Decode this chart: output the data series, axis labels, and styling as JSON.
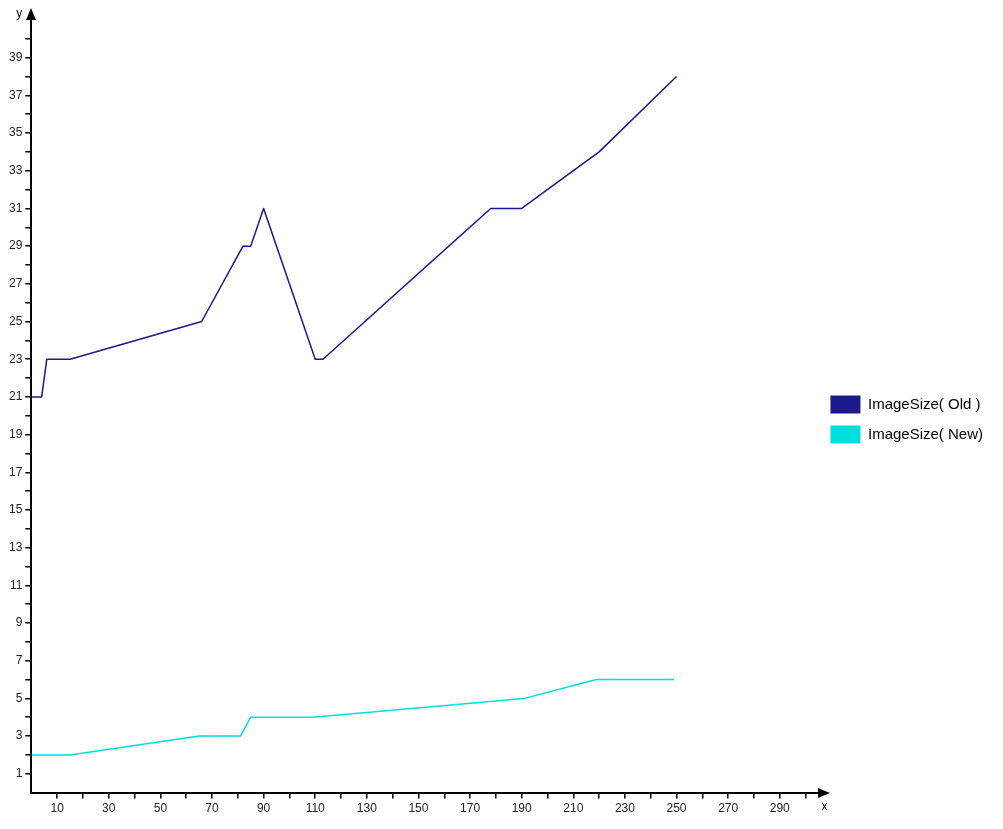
{
  "chart_data": {
    "type": "line",
    "xlabel": "x",
    "ylabel": "y",
    "xlim": [
      0,
      305
    ],
    "ylim": [
      0,
      41
    ],
    "xticks": [
      {
        "value": 10,
        "label": "10"
      },
      {
        "value": 20,
        "label": null
      },
      {
        "value": 30,
        "label": "30"
      },
      {
        "value": 40,
        "label": null
      },
      {
        "value": 50,
        "label": "50"
      },
      {
        "value": 60,
        "label": null
      },
      {
        "value": 70,
        "label": "70"
      },
      {
        "value": 80,
        "label": null
      },
      {
        "value": 90,
        "label": "90"
      },
      {
        "value": 100,
        "label": null
      },
      {
        "value": 110,
        "label": "110"
      },
      {
        "value": 120,
        "label": null
      },
      {
        "value": 130,
        "label": "130"
      },
      {
        "value": 140,
        "label": null
      },
      {
        "value": 150,
        "label": "150"
      },
      {
        "value": 160,
        "label": null
      },
      {
        "value": 170,
        "label": "170"
      },
      {
        "value": 180,
        "label": null
      },
      {
        "value": 190,
        "label": "190"
      },
      {
        "value": 200,
        "label": null
      },
      {
        "value": 210,
        "label": "210"
      },
      {
        "value": 220,
        "label": null
      },
      {
        "value": 230,
        "label": "230"
      },
      {
        "value": 240,
        "label": null
      },
      {
        "value": 250,
        "label": "250"
      },
      {
        "value": 260,
        "label": null
      },
      {
        "value": 270,
        "label": "270"
      },
      {
        "value": 280,
        "label": null
      },
      {
        "value": 290,
        "label": "290"
      },
      {
        "value": 300,
        "label": null
      }
    ],
    "yticks": [
      {
        "value": 1,
        "label": "1"
      },
      {
        "value": 2,
        "label": null
      },
      {
        "value": 3,
        "label": "3"
      },
      {
        "value": 4,
        "label": null
      },
      {
        "value": 5,
        "label": "5"
      },
      {
        "value": 6,
        "label": null
      },
      {
        "value": 7,
        "label": "7"
      },
      {
        "value": 8,
        "label": null
      },
      {
        "value": 9,
        "label": "9"
      },
      {
        "value": 10,
        "label": null
      },
      {
        "value": 11,
        "label": "11"
      },
      {
        "value": 12,
        "label": null
      },
      {
        "value": 13,
        "label": "13"
      },
      {
        "value": 14,
        "label": null
      },
      {
        "value": 15,
        "label": "15"
      },
      {
        "value": 16,
        "label": null
      },
      {
        "value": 17,
        "label": "17"
      },
      {
        "value": 18,
        "label": null
      },
      {
        "value": 19,
        "label": "19"
      },
      {
        "value": 20,
        "label": null
      },
      {
        "value": 21,
        "label": "21"
      },
      {
        "value": 22,
        "label": null
      },
      {
        "value": 23,
        "label": "23"
      },
      {
        "value": 24,
        "label": null
      },
      {
        "value": 25,
        "label": "25"
      },
      {
        "value": 26,
        "label": null
      },
      {
        "value": 27,
        "label": "27"
      },
      {
        "value": 28,
        "label": null
      },
      {
        "value": 29,
        "label": "29"
      },
      {
        "value": 30,
        "label": null
      },
      {
        "value": 31,
        "label": "31"
      },
      {
        "value": 32,
        "label": null
      },
      {
        "value": 33,
        "label": "33"
      },
      {
        "value": 34,
        "label": null
      },
      {
        "value": 35,
        "label": "35"
      },
      {
        "value": 36,
        "label": null
      },
      {
        "value": 37,
        "label": "37"
      },
      {
        "value": 38,
        "label": null
      },
      {
        "value": 39,
        "label": "39"
      },
      {
        "value": 40,
        "label": null
      }
    ],
    "grid": false,
    "legend": "right",
    "marker": "none",
    "line_style": "solid",
    "series": [
      {
        "name": "ImageSize( Old )",
        "color": "#1a1a8c",
        "x": [
          0,
          4,
          6,
          15,
          66,
          82,
          85,
          90,
          110,
          113,
          178,
          190,
          220,
          250
        ],
        "values": [
          21,
          21,
          23,
          23,
          25,
          29,
          29,
          31,
          23,
          23,
          31,
          31,
          34,
          38
        ]
      },
      {
        "name": "ImageSize( New)",
        "color": "#00dede",
        "x": [
          0,
          4,
          15,
          65,
          81,
          85,
          109,
          191,
          219,
          249
        ],
        "values": [
          2,
          2,
          2,
          3,
          3,
          4,
          4,
          5,
          6,
          6
        ]
      }
    ]
  }
}
